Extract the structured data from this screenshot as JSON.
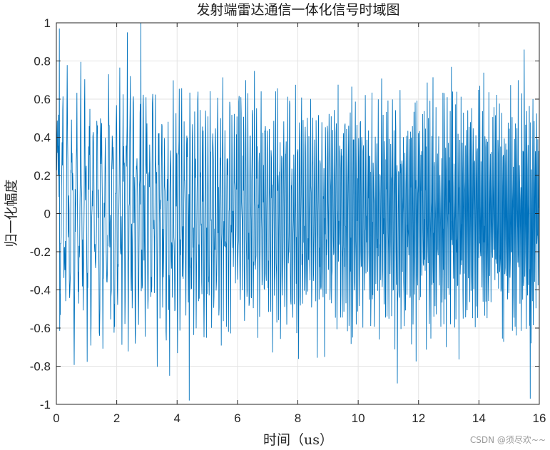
{
  "chart_data": {
    "type": "line",
    "title": "发射端雷达通信一体化信号时域图",
    "xlabel": "时间（us）",
    "ylabel": "归一化幅度",
    "xlim": [
      0,
      16
    ],
    "ylim": [
      -1,
      1
    ],
    "x_ticks": [
      "0",
      "2",
      "4",
      "6",
      "8",
      "10",
      "12",
      "14",
      "16"
    ],
    "y_ticks": [
      "1",
      "0.8",
      "0.6",
      "0.4",
      "0.2",
      "0",
      "-0.2",
      "-0.4",
      "-0.6",
      "-0.8",
      "-1"
    ],
    "grid": true,
    "series": [
      {
        "color": "#0072BD",
        "x_range": [
          0,
          16
        ],
        "sample_count": 1600,
        "description": "dense oscillating waveform, amplitude mostly within ±0.6, peaks near ±1",
        "notable_peaks": [
          {
            "x": 0.1,
            "y": 0.97
          },
          {
            "x": 2.35,
            "y": 0.95
          },
          {
            "x": 2.8,
            "y": 1.0
          },
          {
            "x": 3.75,
            "y": -0.85
          },
          {
            "x": 4.4,
            "y": -0.98
          },
          {
            "x": 11.3,
            "y": -0.89
          },
          {
            "x": 15.7,
            "y": -0.97
          },
          {
            "x": 15.5,
            "y": 0.86
          }
        ]
      }
    ]
  },
  "watermark": "CSDN @须尽欢~~"
}
